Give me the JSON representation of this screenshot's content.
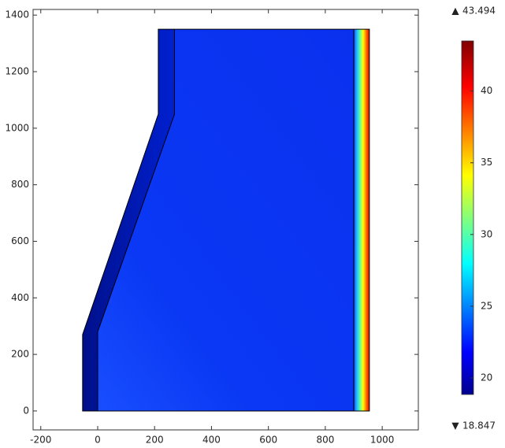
{
  "chart_data": {
    "type": "surface",
    "xlim": [
      -227,
      1127
    ],
    "ylim": [
      -67,
      1420
    ],
    "xticks": [
      -200,
      0,
      200,
      400,
      600,
      800,
      1000
    ],
    "yticks": [
      0,
      200,
      400,
      600,
      800,
      1000,
      1200,
      1400
    ],
    "outline": {
      "x": [
        -53,
        -53,
        213,
        213,
        955,
        955
      ],
      "y": [
        0,
        270,
        1050,
        1350,
        1350,
        0
      ]
    },
    "interfaces": [
      {
        "x": [
          0,
          0,
          270,
          270
        ],
        "y": [
          0,
          280,
          1050,
          1350
        ]
      },
      {
        "x": [
          900,
          900
        ],
        "y": [
          0,
          1350
        ]
      }
    ],
    "clim": [
      18.847,
      43.494
    ],
    "cticks": [
      20,
      25,
      30,
      35,
      40
    ]
  }
}
